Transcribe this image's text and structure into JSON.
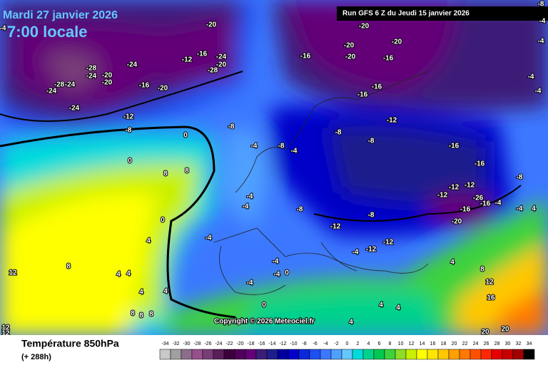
{
  "header": {
    "date": "Mardi 27 janvier 2026",
    "time": "7:00 locale",
    "run": "Run GFS 6 Z du Jeudi 15 janvier 2026"
  },
  "copyright": "Copyright © 2026 Meteociel.fr",
  "footer": {
    "title": "Température 850hPa",
    "lead": "(+ 288h)"
  },
  "scale": {
    "values": [
      -34,
      -32,
      -30,
      -28,
      -26,
      -24,
      -22,
      -20,
      -18,
      -16,
      -14,
      -12,
      -10,
      -8,
      -6,
      -4,
      -2,
      0,
      2,
      4,
      6,
      8,
      10,
      12,
      14,
      16,
      18,
      20,
      22,
      24,
      26,
      28,
      30,
      32,
      34
    ],
    "colors": [
      "#c8c8c8",
      "#a0a0a0",
      "#8c6e8c",
      "#96508c",
      "#783c78",
      "#5a1e5a",
      "#3c003c",
      "#50005a",
      "#640078",
      "#3c1e78",
      "#1e1e8c",
      "#0000a0",
      "#0000c8",
      "#0a28dc",
      "#1e50f0",
      "#3c78ff",
      "#50a0ff",
      "#64c8ff",
      "#00dcdc",
      "#00d28c",
      "#00c850",
      "#3cd23c",
      "#8cdc28",
      "#c8f000",
      "#ffff00",
      "#ffe600",
      "#ffc800",
      "#ffa000",
      "#ff7800",
      "#ff5000",
      "#ff2800",
      "#e60000",
      "#c80000",
      "#a00000",
      "#000000"
    ]
  },
  "map_labels": [
    -28,
    -24,
    -20,
    -20,
    -24,
    -24,
    -28,
    -24,
    -24,
    -16,
    -20,
    -12,
    -16,
    -24,
    -20,
    -28,
    -20,
    -16,
    -20,
    -20,
    -16,
    -20,
    -20,
    -16,
    -16,
    -12,
    -8,
    -8,
    -16,
    -16,
    -8,
    -12,
    -12,
    -12,
    -26,
    -16,
    -16,
    -20,
    -4,
    -4,
    4,
    -8,
    -12,
    -12,
    -12,
    -4,
    -8,
    -4,
    -8,
    -4,
    -8,
    -12,
    -8,
    0,
    0,
    8,
    8,
    -4,
    -4,
    -4,
    -4,
    -4,
    -4,
    0,
    0,
    4,
    8,
    4,
    4,
    4,
    8,
    8,
    8,
    4,
    12,
    12,
    12,
    0,
    4,
    4,
    4,
    8,
    12,
    16,
    20,
    20,
    4,
    -4,
    -4,
    -4,
    -4,
    -4,
    -8
  ]
}
